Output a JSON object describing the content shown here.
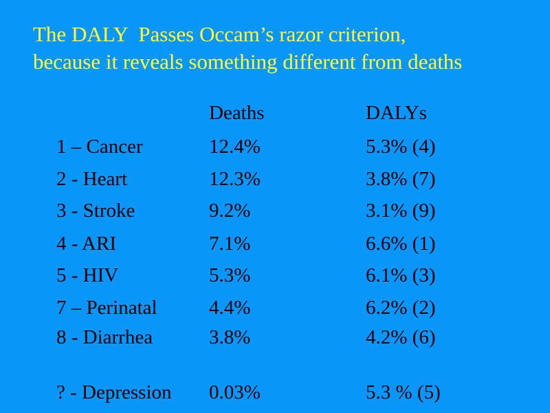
{
  "slide": {
    "title_line1": "The DALY  Passes Occam’s razor criterion,",
    "title_line2": "because it reveals something different from deaths"
  },
  "table": {
    "headers": [
      "",
      "Deaths",
      "DALYs"
    ],
    "rows": [
      {
        "cause": "1 – Cancer",
        "deaths": "12.4%",
        "dalys": "5.3% (4)"
      },
      {
        "cause": "2 - Heart",
        "deaths": "12.3%",
        "dalys": "3.8% (7)"
      },
      {
        "cause": "3 - Stroke",
        "deaths": "9.2%",
        "dalys": "3.1% (9)"
      },
      {
        "cause": "4 - ARI",
        "deaths": "7.1%",
        "dalys": "6.6% (1)"
      },
      {
        "cause": "5 - HIV",
        "deaths": "5.3%",
        "dalys": "6.1% (3)"
      },
      {
        "cause": "7 – Perinatal",
        "deaths": "4.4%",
        "dalys": "6.2% (2)"
      },
      {
        "cause": "8 - Diarrhea",
        "deaths": "3.8%",
        "dalys": "4.2% (6)"
      },
      {
        "cause": "? - Depression",
        "deaths": "0.03%",
        "dalys": "5.3 % (5)"
      }
    ]
  },
  "colors": {
    "background": "#0a96fa",
    "title": "#ffff33",
    "body_text": "#000000"
  }
}
